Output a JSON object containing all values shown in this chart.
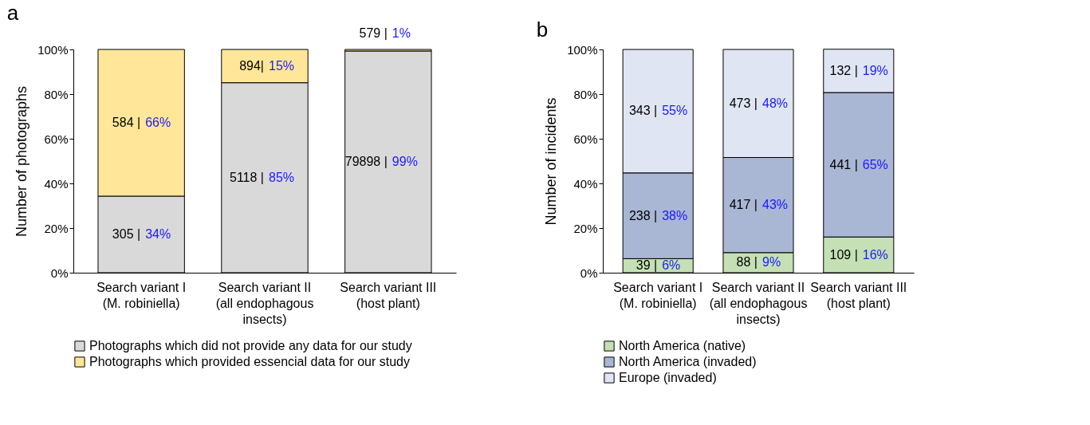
{
  "chart_data": [
    {
      "type": "bar",
      "title": "a",
      "stacked": true,
      "legend": "bottom",
      "ylabel": "Number of photographs",
      "categories": [
        "Search variant I\n(M. robiniella)",
        "Search variant II\n(all endophagous\ninsects)",
        "Search variant III\n(host plant)"
      ],
      "ylim": [
        0,
        100
      ],
      "yticks": [
        {
          "value": 0,
          "label": "0%"
        },
        {
          "value": 20,
          "label": "20%"
        },
        {
          "value": 40,
          "label": "40%"
        },
        {
          "value": 60,
          "label": "60%"
        },
        {
          "value": 80,
          "label": "80%"
        },
        {
          "value": 100,
          "label": "100%"
        }
      ],
      "series": [
        {
          "name": "Photographs which did not provide any data for our study",
          "color": "#d9d9d9",
          "values": [
            34.3,
            85.1,
            99.3
          ],
          "value_labels": [
            "305 | 34%",
            "5118 | 85%",
            "79898 | 99%"
          ]
        },
        {
          "name": "Photographs which provided essencial data for our study",
          "color": "#ffe699",
          "values": [
            65.7,
            14.9,
            0.7
          ],
          "value_labels": [
            "584 | 66%",
            "894| 15%",
            "579 | 1%"
          ]
        }
      ]
    },
    {
      "type": "bar",
      "title": "b",
      "stacked": true,
      "legend": "bottom",
      "ylabel": "Number of incidents",
      "categories": [
        "Search variant I\n(M. robiniella)",
        "Search variant II\n(all endophagous\ninsects)",
        "Search variant III\n(host plant)"
      ],
      "ylim": [
        0,
        100
      ],
      "yticks": [
        {
          "value": 0,
          "label": "0%"
        },
        {
          "value": 20,
          "label": "20%"
        },
        {
          "value": 40,
          "label": "40%"
        },
        {
          "value": 60,
          "label": "60%"
        },
        {
          "value": 80,
          "label": "80%"
        },
        {
          "value": 100,
          "label": "100%"
        }
      ],
      "series": [
        {
          "name": "North America (native)",
          "color": "#c5e0b4",
          "values": [
            6.3,
            9.0,
            16.0
          ],
          "value_labels": [
            "39 | 6%",
            "88 | 9%",
            "109 | 16%"
          ]
        },
        {
          "name": "North America (invaded)",
          "color": "#a9b6d4",
          "values": [
            38.4,
            42.6,
            64.7
          ],
          "value_labels": [
            "238 | 38%",
            "417 | 43%",
            "441 | 65%"
          ]
        },
        {
          "name": "Europe (invaded)",
          "color": "#dfe5f2",
          "values": [
            55.3,
            48.4,
            19.4
          ],
          "value_labels": [
            "343 | 55%",
            "473 | 48%",
            "132 | 19%"
          ]
        }
      ]
    }
  ]
}
